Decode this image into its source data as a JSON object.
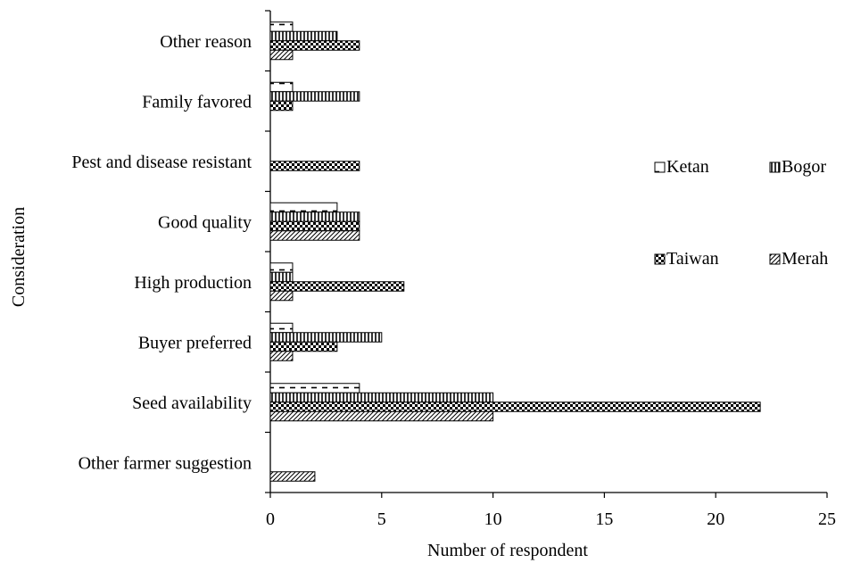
{
  "chart_data": {
    "type": "bar",
    "orientation": "horizontal",
    "title": "",
    "xlabel": "Number of respondent",
    "ylabel": "Consideration",
    "xlim": [
      0,
      25
    ],
    "xticks": [
      "0",
      "5",
      "10",
      "15",
      "20",
      "25"
    ],
    "categories": [
      "Other reason",
      "Family favored",
      "Pest and disease resistant",
      "Good quality",
      "High production",
      "Buyer preferred",
      "Seed availability",
      "Other farmer suggestion"
    ],
    "series": [
      {
        "name": "Ketan",
        "pattern": "dash-horizontal",
        "values": [
          1,
          1,
          0,
          3,
          1,
          1,
          4,
          0
        ]
      },
      {
        "name": "Bogor",
        "pattern": "vertical-lines",
        "values": [
          3,
          4,
          0,
          4,
          1,
          5,
          10,
          0
        ]
      },
      {
        "name": "Taiwan",
        "pattern": "checker",
        "values": [
          4,
          1,
          4,
          4,
          6,
          3,
          22,
          0
        ]
      },
      {
        "name": "Merah",
        "pattern": "diagonal",
        "values": [
          1,
          0,
          0,
          4,
          1,
          1,
          10,
          2
        ]
      }
    ],
    "grid": false,
    "legend": "right"
  }
}
